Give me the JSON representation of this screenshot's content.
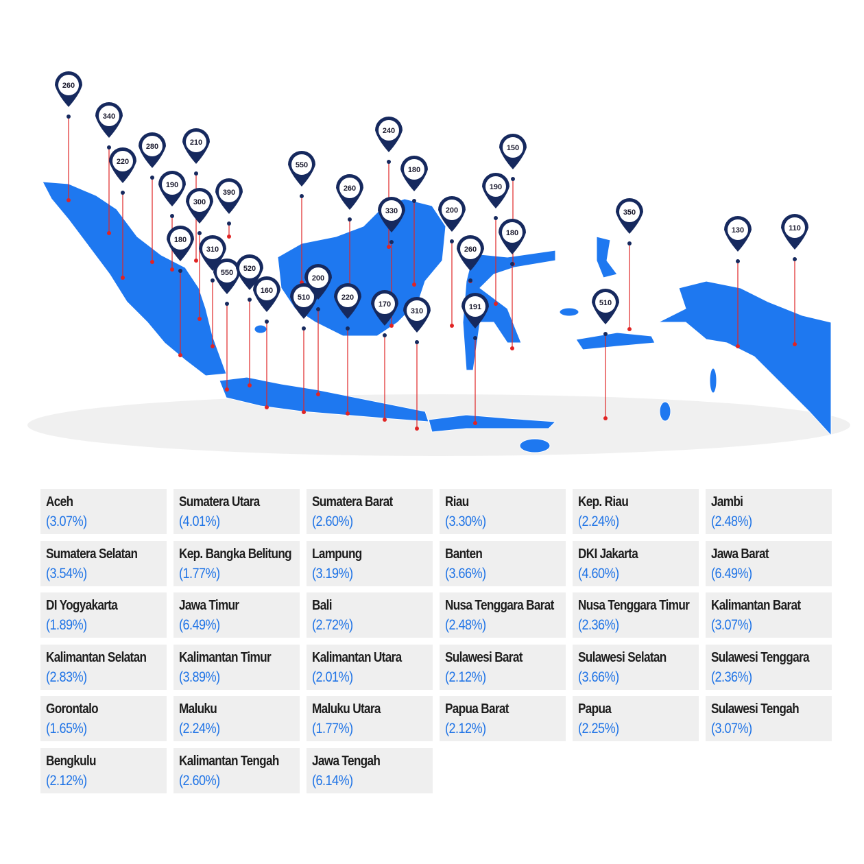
{
  "pins": [
    260,
    340,
    220,
    280,
    210,
    190,
    300,
    390,
    180,
    310,
    550,
    520,
    160,
    550,
    510,
    200,
    260,
    220,
    240,
    330,
    180,
    170,
    310,
    200,
    260,
    191,
    190,
    150,
    180,
    350,
    510,
    130,
    110
  ],
  "regions": [
    {
      "name": "Aceh",
      "share": "(3.07%)"
    },
    {
      "name": "Sumatera Utara",
      "share": "(4.01%)"
    },
    {
      "name": "Sumatera Barat",
      "share": "(2.60%)"
    },
    {
      "name": "Riau",
      "share": "(3.30%)"
    },
    {
      "name": "Kep. Riau",
      "share": "(2.24%)"
    },
    {
      "name": "Jambi",
      "share": "(2.48%)"
    },
    {
      "name": "Sumatera Selatan",
      "share": "(3.54%)"
    },
    {
      "name": "Kep. Bangka Belitung",
      "share": "(1.77%)"
    },
    {
      "name": "Lampung",
      "share": "(3.19%)"
    },
    {
      "name": "Banten",
      "share": "(3.66%)"
    },
    {
      "name": "DKI Jakarta",
      "share": "(4.60%)"
    },
    {
      "name": "Jawa Barat",
      "share": "(6.49%)"
    },
    {
      "name": "DI Yogyakarta",
      "share": "(1.89%)"
    },
    {
      "name": "Jawa Timur",
      "share": "(6.49%)"
    },
    {
      "name": "Bali",
      "share": "(2.72%)"
    },
    {
      "name": "Nusa Tenggara Barat",
      "share": "(2.48%)"
    },
    {
      "name": "Nusa Tenggara Timur",
      "share": "(2.36%)"
    },
    {
      "name": "Kalimantan Barat",
      "share": "(3.07%)"
    },
    {
      "name": "Kalimantan Selatan",
      "share": "(2.83%)"
    },
    {
      "name": "Kalimantan Timur",
      "share": "(3.89%)"
    },
    {
      "name": "Kalimantan Utara",
      "share": "(2.01%)"
    },
    {
      "name": "Sulawesi Barat",
      "share": "(2.12%)"
    },
    {
      "name": "Sulawesi Selatan",
      "share": "(3.66%)"
    },
    {
      "name": "Sulawesi Tenggara",
      "share": "(2.36%)"
    },
    {
      "name": "Gorontalo",
      "share": "(1.65%)"
    },
    {
      "name": "Maluku",
      "share": "(2.24%)"
    },
    {
      "name": "Maluku Utara",
      "share": "(1.77%)"
    },
    {
      "name": "Papua Barat",
      "share": "(2.12%)"
    },
    {
      "name": "Papua",
      "share": "(2.25%)"
    },
    {
      "name": "Sulawesi Tengah",
      "share": "(3.07%)"
    },
    {
      "name": "Bengkulu",
      "share": "(2.12%)"
    },
    {
      "name": "Kalimantan Tengah",
      "share": "(2.60%)"
    },
    {
      "name": "Jawa Tengah",
      "share": "(6.14%)"
    }
  ]
}
